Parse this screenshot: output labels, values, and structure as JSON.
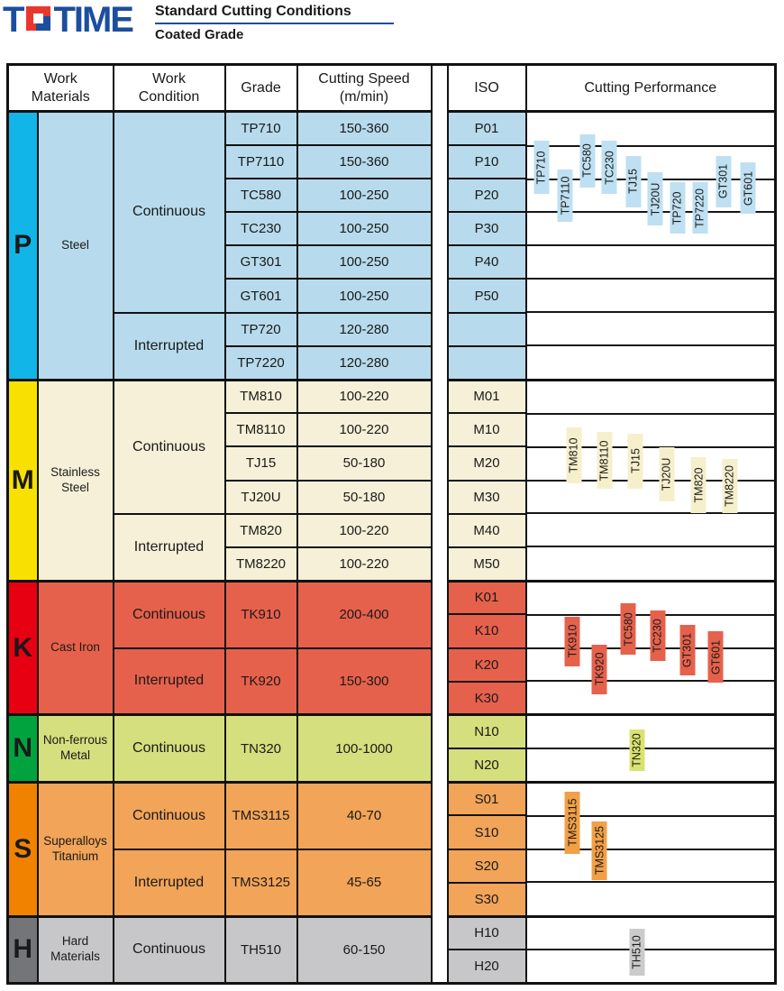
{
  "page": {
    "logo_t": "T",
    "logo_rest": "TIME",
    "title": "Standard Cutting Conditions",
    "subtitle": "Coated Grade"
  },
  "colors": {
    "logo_blue": "#1C4E9E",
    "logo_red": "#E8382D",
    "border": "#111111"
  },
  "table": {
    "columns": {
      "work_materials": "Work\nMaterials",
      "work_condition": "Work\nCondition",
      "grade": "Grade",
      "cutting_speed": "Cutting Speed\n(m/min)",
      "iso": "ISO",
      "cutting_performance": "Cutting Performance"
    },
    "sections": [
      {
        "letter": "P",
        "material": "Steel",
        "letter_bg": "#12B5E8",
        "cell_bg": "#B7DBEC",
        "bar_bg": "#BEE0F2",
        "blocks": [
          {
            "label": "Continuous",
            "span": 6,
            "grades": [
              {
                "grade": "TP710",
                "speed": "150-360",
                "span": 1
              },
              {
                "grade": "TP7110",
                "speed": "150-360",
                "span": 1
              },
              {
                "grade": "TC580",
                "speed": "100-250",
                "span": 1
              },
              {
                "grade": "TC230",
                "speed": "100-250",
                "span": 1
              },
              {
                "grade": "GT301",
                "speed": "100-250",
                "span": 1
              },
              {
                "grade": "GT601",
                "speed": "100-250",
                "span": 1
              }
            ]
          },
          {
            "label": "Interrupted",
            "span": 2,
            "grades": [
              {
                "grade": "TP720",
                "speed": "120-280",
                "span": 1
              },
              {
                "grade": "TP7220",
                "speed": "120-280",
                "span": 1
              }
            ]
          }
        ],
        "iso_rows": [
          "P01",
          "P10",
          "P20",
          "P30",
          "P40",
          "P50",
          "",
          ""
        ],
        "bars": [
          {
            "label": "TP710",
            "x": 6,
            "start": 0.85,
            "end": 2.45
          },
          {
            "label": "TP7110",
            "x": 15.5,
            "start": 1.7,
            "end": 3.3
          },
          {
            "label": "TC580",
            "x": 24.5,
            "start": 0.65,
            "end": 2.25
          },
          {
            "label": "TC230",
            "x": 33.5,
            "start": 0.85,
            "end": 2.45
          },
          {
            "label": "TJ15",
            "x": 43,
            "start": 1.3,
            "end": 2.85
          },
          {
            "label": "TJ20U",
            "x": 52,
            "start": 1.8,
            "end": 3.4
          },
          {
            "label": "TP720",
            "x": 61,
            "start": 2.1,
            "end": 3.65
          },
          {
            "label": "TP7220",
            "x": 70,
            "start": 2.1,
            "end": 3.65
          },
          {
            "label": "GT301",
            "x": 79.5,
            "start": 1.3,
            "end": 2.85
          },
          {
            "label": "GT601",
            "x": 89.5,
            "start": 1.5,
            "end": 3.05
          }
        ]
      },
      {
        "letter": "M",
        "material": "Stainless\nSteel",
        "letter_bg": "#F8E100",
        "cell_bg": "#F6F0D8",
        "bar_bg": "#F6EFCB",
        "blocks": [
          {
            "label": "Continuous",
            "span": 4,
            "grades": [
              {
                "grade": "TM810",
                "speed": "100-220",
                "span": 1
              },
              {
                "grade": "TM8110",
                "speed": "100-220",
                "span": 1
              },
              {
                "grade": "TJ15",
                "speed": "50-180",
                "span": 1
              },
              {
                "grade": "TJ20U",
                "speed": "50-180",
                "span": 1
              }
            ]
          },
          {
            "label": "Interrupted",
            "span": 2,
            "grades": [
              {
                "grade": "TM820",
                "speed": "100-220",
                "span": 1
              },
              {
                "grade": "TM8220",
                "speed": "100-220",
                "span": 1
              }
            ]
          }
        ],
        "iso_rows": [
          "M01",
          "M10",
          "M20",
          "M30",
          "M40",
          "M50"
        ],
        "bars": [
          {
            "label": "TM810",
            "x": 19,
            "start": 1.4,
            "end": 3.1
          },
          {
            "label": "TM8110",
            "x": 31.5,
            "start": 1.55,
            "end": 3.25
          },
          {
            "label": "TJ15",
            "x": 44,
            "start": 1.6,
            "end": 3.25
          },
          {
            "label": "TJ20U",
            "x": 56.5,
            "start": 2.0,
            "end": 3.65
          },
          {
            "label": "TM820",
            "x": 69.5,
            "start": 2.3,
            "end": 4.0
          },
          {
            "label": "TM8220",
            "x": 82,
            "start": 2.35,
            "end": 4.0
          }
        ]
      },
      {
        "letter": "K",
        "material": "Cast Iron",
        "letter_bg": "#E60012",
        "cell_bg": "#E6614C",
        "bar_bg": "#E6614C",
        "blocks": [
          {
            "label": "Continuous",
            "span": 2,
            "grades": [
              {
                "grade": "TK910",
                "speed": "200-400",
                "span": 2
              }
            ]
          },
          {
            "label": "Interrupted",
            "span": 2,
            "grades": [
              {
                "grade": "TK920",
                "speed": "150-300",
                "span": 2
              }
            ]
          }
        ],
        "iso_rows": [
          "K01",
          "K10",
          "K20",
          "K30"
        ],
        "bars": [
          {
            "label": "TK910",
            "x": 18.5,
            "start": 1.05,
            "end": 2.55
          },
          {
            "label": "TK920",
            "x": 29.5,
            "start": 1.9,
            "end": 3.4
          },
          {
            "label": "TC580",
            "x": 41,
            "start": 0.65,
            "end": 2.2
          },
          {
            "label": "TC230",
            "x": 53,
            "start": 0.85,
            "end": 2.4
          },
          {
            "label": "GT301",
            "x": 65,
            "start": 1.3,
            "end": 2.85
          },
          {
            "label": "GT601",
            "x": 76.5,
            "start": 1.5,
            "end": 3.05
          }
        ]
      },
      {
        "letter": "N",
        "material": "Non-ferrous\nMetal",
        "letter_bg": "#00A33E",
        "cell_bg": "#D6DF7D",
        "bar_bg": "#D9E36F",
        "blocks": [
          {
            "label": "Continuous",
            "span": 2,
            "grades": [
              {
                "grade": "TN320",
                "speed": "100-1000",
                "span": 2
              }
            ]
          }
        ],
        "iso_rows": [
          "N10",
          "N20"
        ],
        "bars": [
          {
            "label": "TN320",
            "x": 44.5,
            "start": 0.4,
            "end": 1.7
          }
        ]
      },
      {
        "letter": "S",
        "material": "Superalloys\nTitanium",
        "letter_bg": "#F08200",
        "cell_bg": "#F2A458",
        "bar_bg": "#F2A045",
        "blocks": [
          {
            "label": "Continuous",
            "span": 2,
            "grades": [
              {
                "grade": "TMS3115",
                "speed": "40-70",
                "span": 2
              }
            ]
          },
          {
            "label": "Interrupted",
            "span": 2,
            "grades": [
              {
                "grade": "TMS3125",
                "speed": "45-65",
                "span": 2
              }
            ]
          }
        ],
        "iso_rows": [
          "S01",
          "S10",
          "S20",
          "S30"
        ],
        "bars": [
          {
            "label": "TMS3115",
            "x": 18.5,
            "start": 0.25,
            "end": 2.15
          },
          {
            "label": "TMS3125",
            "x": 29.5,
            "start": 1.15,
            "end": 2.95
          }
        ]
      },
      {
        "letter": "H",
        "material": "Hard\nMaterials",
        "letter_bg": "#737578",
        "cell_bg": "#C7C7C9",
        "bar_bg": "#CBCBCB",
        "blocks": [
          {
            "label": "Continuous",
            "span": 2,
            "grades": [
              {
                "grade": "TH510",
                "speed": "60-150",
                "span": 2
              }
            ]
          }
        ],
        "iso_rows": [
          "H10",
          "H20"
        ],
        "bars": [
          {
            "label": "TH510",
            "x": 44.5,
            "start": 0.35,
            "end": 1.8
          }
        ]
      }
    ]
  }
}
